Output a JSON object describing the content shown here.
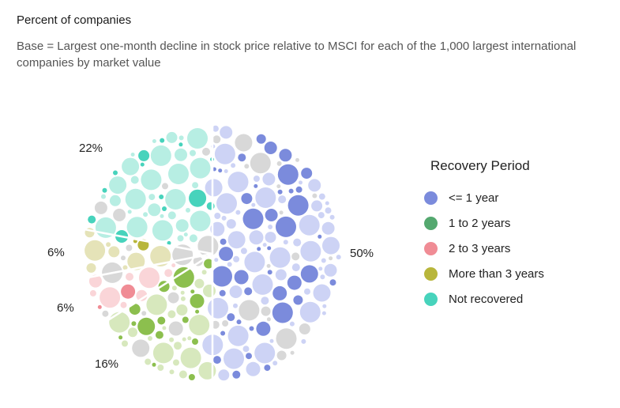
{
  "header": {
    "title": "Percent of companies",
    "subtitle": "Base = Largest one-month decline in stock price relative to MSCI for each of the 1,000 largest international companies by market value"
  },
  "legend": {
    "title": "Recovery Period"
  },
  "chart_data": {
    "type": "pie",
    "title": "Percent of companies",
    "subtitle": "Base = Largest one-month decline in stock price relative to MSCI for each of the 1,000 largest international companies by market value",
    "legend_title": "Recovery Period",
    "legend_position": "right",
    "slices": [
      {
        "name": "<= 1 year",
        "value": 50,
        "label": "50%",
        "color": "#7b8bdc",
        "light": "#cdd3f5"
      },
      {
        "name": "1 to 2 years",
        "value": 16,
        "label": "16%",
        "color": "#8cbf4e",
        "light": "#d7e8bd"
      },
      {
        "name": "2 to 3 years",
        "value": 6,
        "label": "6%",
        "color": "#f08c95",
        "light": "#fad5d8"
      },
      {
        "name": "More than 3 years",
        "value": 6,
        "label": "6%",
        "color": "#b8b63b",
        "light": "#e5e3b8"
      },
      {
        "name": "Not recovered",
        "value": 22,
        "label": "22%",
        "color": "#47d3bc",
        "light": "#b7eee3"
      }
    ],
    "legend_swatches": [
      "#7b8bdc",
      "#54a86f",
      "#f08c95",
      "#b8b63b",
      "#47d3bc"
    ]
  }
}
